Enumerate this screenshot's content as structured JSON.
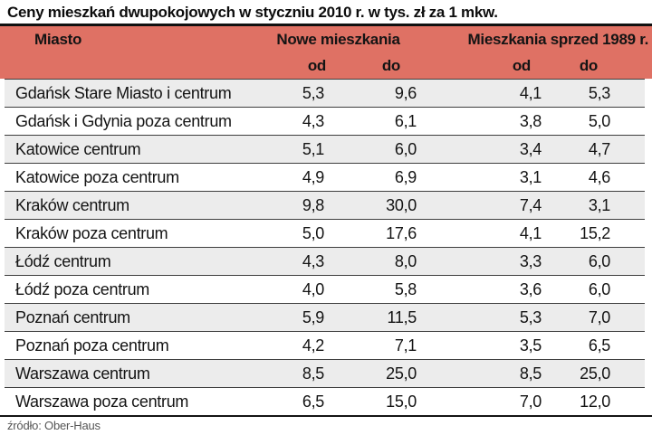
{
  "title": "Ceny mieszkań dwupokojowych w styczniu 2010 r. w tys. zł za 1 mkw.",
  "colors": {
    "header_bg": "#df7164",
    "row_alt_bg": "#ececec",
    "row_separator": "#3e3e3e",
    "rule": "#101010",
    "source_text": "#565656"
  },
  "table": {
    "city_header": "Miasto",
    "group_header_new": "Nowe mieszkania",
    "group_header_old": "Mieszkania sprzed 1989 r.",
    "sub_od_new": "od",
    "sub_do_new": "do",
    "sub_od_old": "od",
    "sub_do_old": "do",
    "rows": [
      {
        "city": "Gdańsk Stare Miasto i centrum",
        "values": [
          "5,3",
          "9,6",
          "4,1",
          "5,3"
        ]
      },
      {
        "city": "Gdańsk i Gdynia poza centrum",
        "values": [
          "4,3",
          "6,1",
          "3,8",
          "5,0"
        ]
      },
      {
        "city": "Katowice centrum",
        "values": [
          "5,1",
          "6,0",
          "3,4",
          "4,7"
        ]
      },
      {
        "city": "Katowice poza centrum",
        "values": [
          "4,9",
          "6,9",
          "3,1",
          "4,6"
        ]
      },
      {
        "city": "Kraków centrum",
        "values": [
          "9,8",
          "30,0",
          "7,4",
          "3,1"
        ]
      },
      {
        "city": "Kraków poza centrum",
        "values": [
          "5,0",
          "17,6",
          "4,1",
          "15,2"
        ]
      },
      {
        "city": "Łódź centrum",
        "values": [
          "4,3",
          "8,0",
          "3,3",
          "6,0"
        ]
      },
      {
        "city": "Łódź poza centrum",
        "values": [
          "4,0",
          "5,8",
          "3,6",
          "6,0"
        ]
      },
      {
        "city": "Poznań centrum",
        "values": [
          "5,9",
          "11,5",
          "5,3",
          "7,0"
        ]
      },
      {
        "city": "Poznań poza centrum",
        "values": [
          "4,2",
          "7,1",
          "3,5",
          "6,5"
        ]
      },
      {
        "city": "Warszawa centrum",
        "values": [
          "8,5",
          "25,0",
          "8,5",
          "25,0"
        ]
      },
      {
        "city": "Warszawa poza centrum",
        "values": [
          "6,5",
          "15,0",
          "7,0",
          "12,0"
        ]
      }
    ]
  },
  "source": "źródło: Ober-Haus",
  "chart_data": {
    "type": "table",
    "title": "Ceny mieszkań dwupokojowych w styczniu 2010 r. w tys. zł za 1 mkw.",
    "columns": [
      "Miasto",
      "Nowe mieszkania od",
      "Nowe mieszkania do",
      "Mieszkania sprzed 1989 r. od",
      "Mieszkania sprzed 1989 r. do"
    ],
    "rows": [
      [
        "Gdańsk Stare Miasto i centrum",
        5.3,
        9.6,
        4.1,
        5.3
      ],
      [
        "Gdańsk i Gdynia poza centrum",
        4.3,
        6.1,
        3.8,
        5.0
      ],
      [
        "Katowice centrum",
        5.1,
        6.0,
        3.4,
        4.7
      ],
      [
        "Katowice poza centrum",
        4.9,
        6.9,
        3.1,
        4.6
      ],
      [
        "Kraków centrum",
        9.8,
        30.0,
        7.4,
        3.1
      ],
      [
        "Kraków poza centrum",
        5.0,
        17.6,
        4.1,
        15.2
      ],
      [
        "Łódź centrum",
        4.3,
        8.0,
        3.3,
        6.0
      ],
      [
        "Łódź poza centrum",
        4.0,
        5.8,
        3.6,
        6.0
      ],
      [
        "Poznań centrum",
        5.9,
        11.5,
        5.3,
        7.0
      ],
      [
        "Poznań poza centrum",
        4.2,
        7.1,
        3.5,
        6.5
      ],
      [
        "Warszawa centrum",
        8.5,
        25.0,
        8.5,
        25.0
      ],
      [
        "Warszawa poza centrum",
        6.5,
        15.0,
        7.0,
        12.0
      ]
    ],
    "source": "źródło: Ober-Haus",
    "legend_position": "none",
    "grid": "row-separators"
  }
}
